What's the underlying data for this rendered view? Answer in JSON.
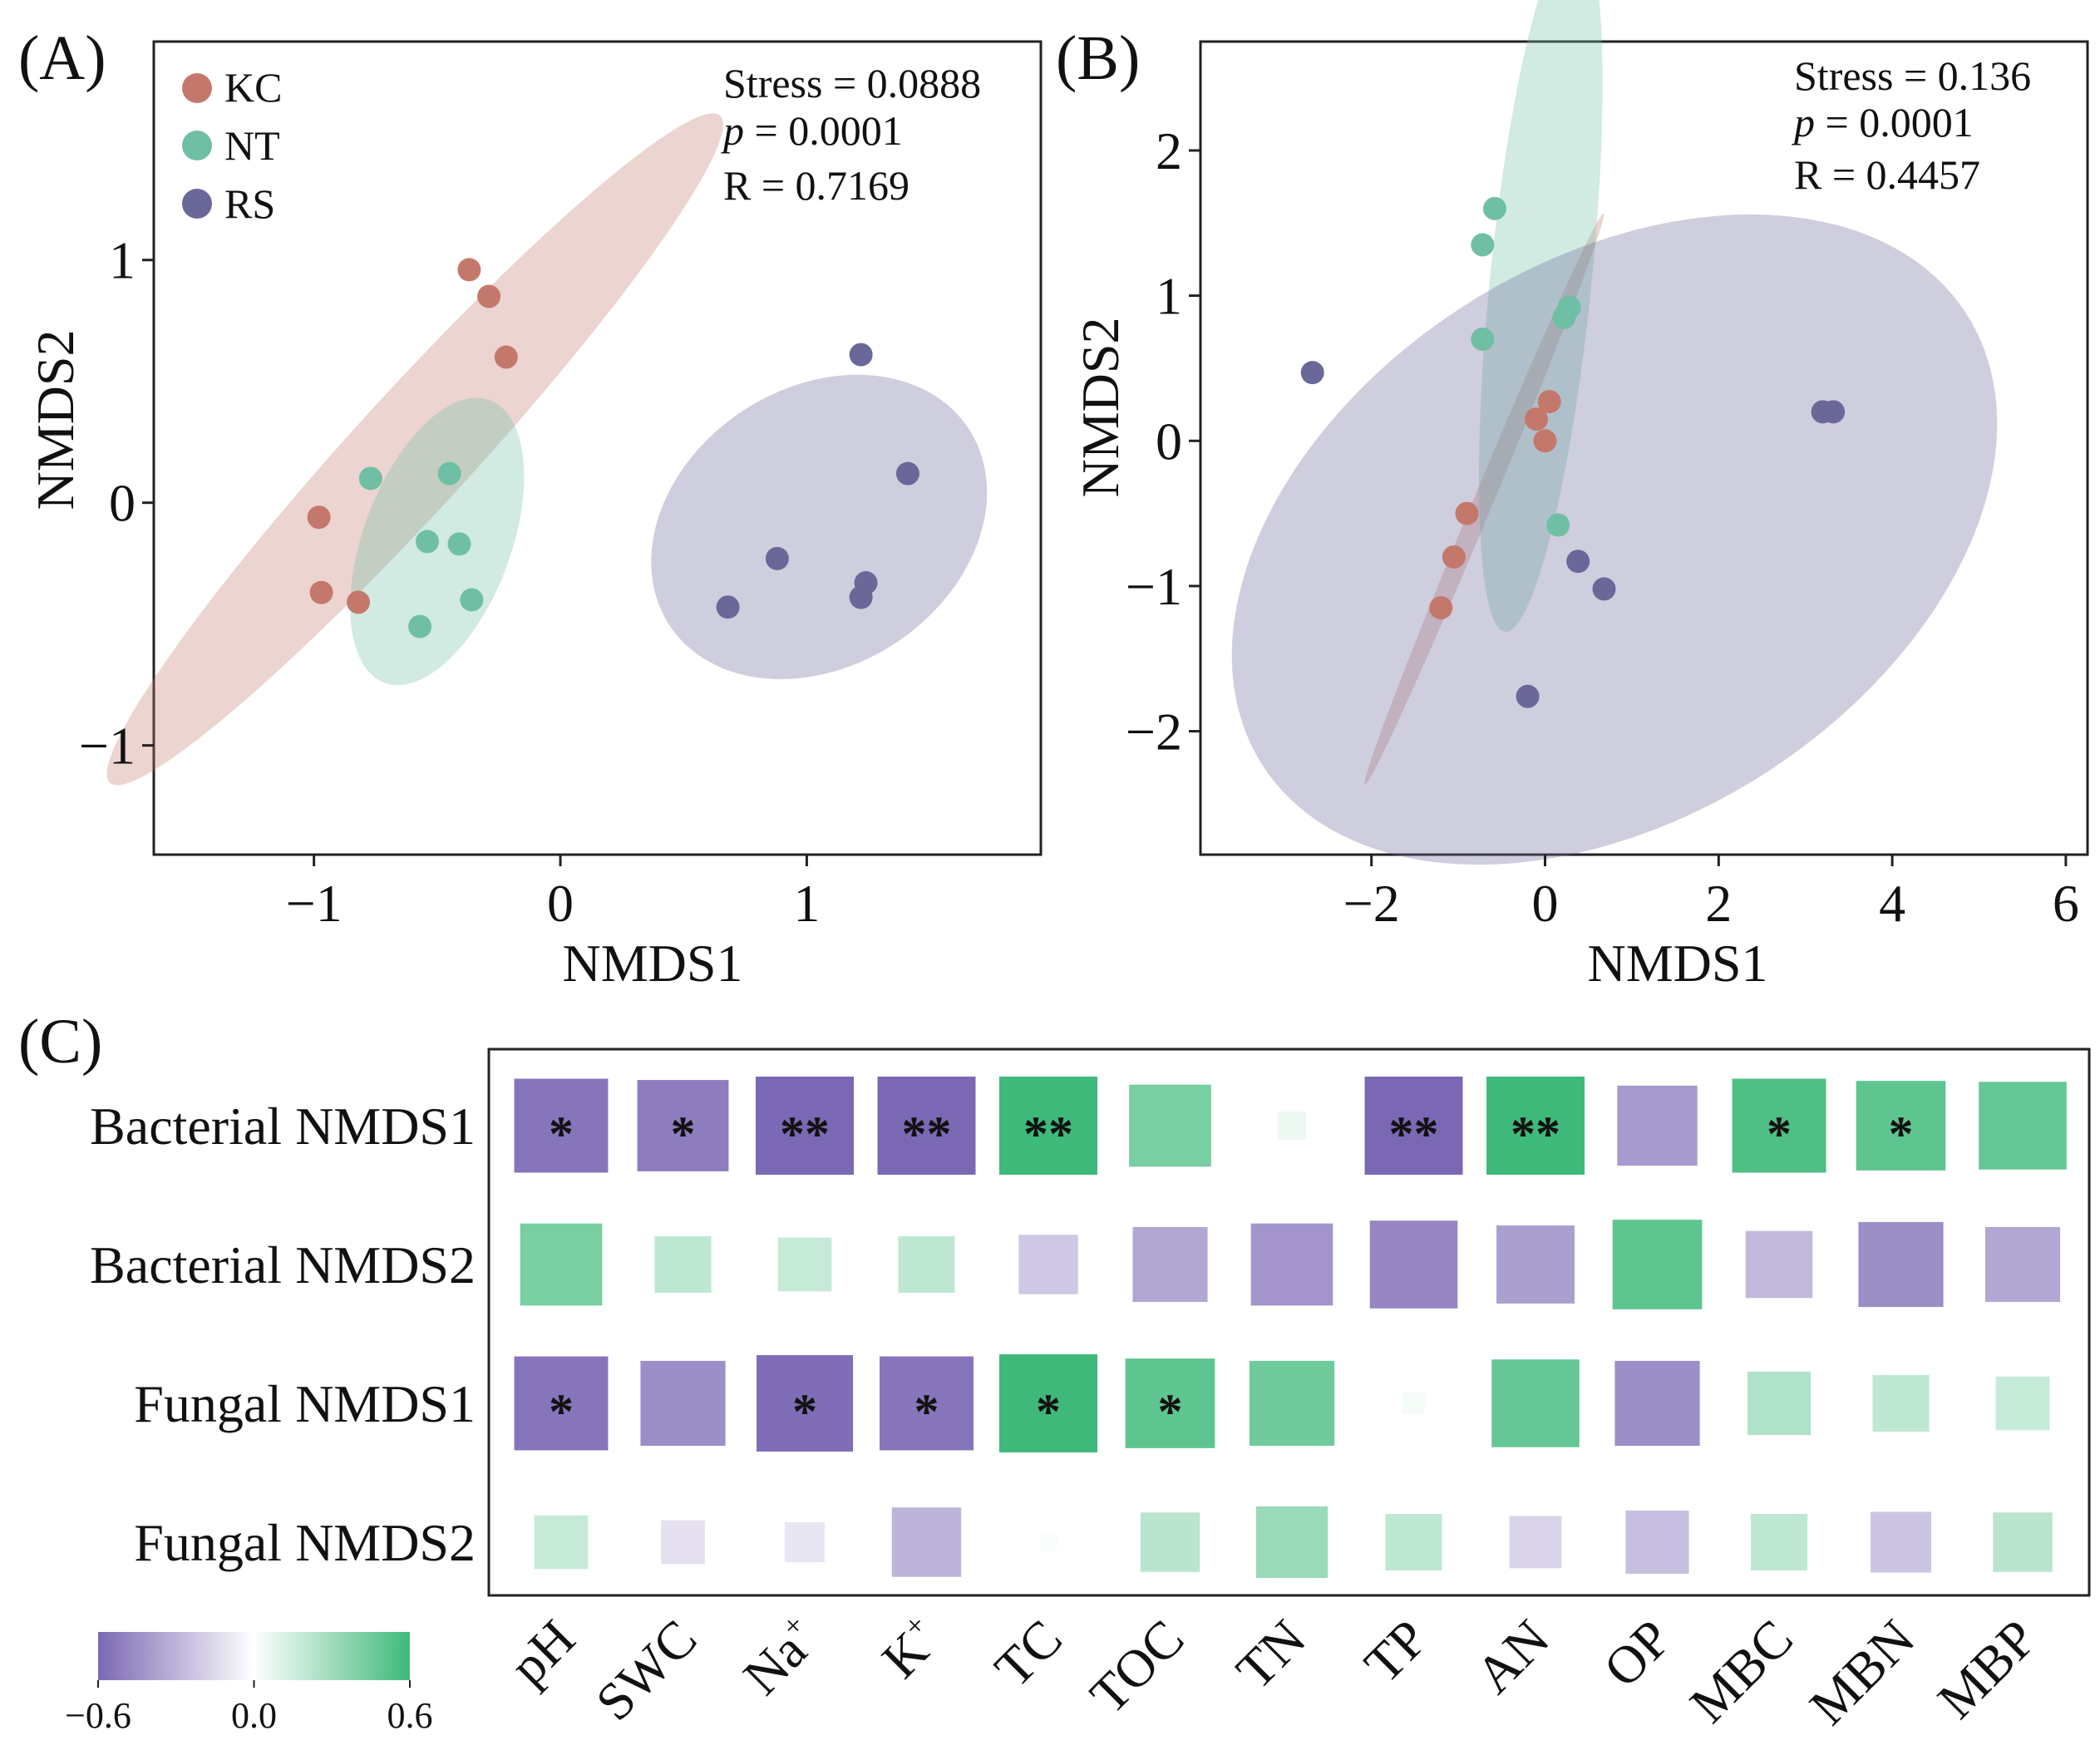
{
  "colors": {
    "KC": "#c4786c",
    "NT": "#6fbfa5",
    "RS": "#6a6799",
    "neg": "#7b68b4",
    "pos": "#3fb97a",
    "mid": "#ffffff"
  },
  "chart_data": [
    {
      "panel": "(A)",
      "type": "scatter",
      "xlabel": "NMDS1",
      "ylabel": "NMDS2",
      "xlim": [
        -1.65,
        1.95
      ],
      "ylim": [
        -1.45,
        1.9
      ],
      "xticks": [
        -1,
        0,
        1
      ],
      "xtick_labels": [
        "−1",
        "0",
        "1"
      ],
      "yticks": [
        -1,
        0,
        1
      ],
      "ytick_labels": [
        "−1",
        "0",
        "1"
      ],
      "stats": [
        "Stress = 0.0888",
        "p = 0.0001",
        "R = 0.7169"
      ],
      "legend": [
        "KC",
        "NT",
        "RS"
      ],
      "series": [
        {
          "name": "KC",
          "points": [
            [
              -0.37,
              0.96
            ],
            [
              -0.29,
              0.85
            ],
            [
              -0.22,
              0.6
            ],
            [
              -0.98,
              -0.06
            ],
            [
              -0.97,
              -0.37
            ],
            [
              -0.82,
              -0.41
            ]
          ]
        },
        {
          "name": "NT",
          "points": [
            [
              -0.77,
              0.1
            ],
            [
              -0.45,
              0.12
            ],
            [
              -0.54,
              -0.16
            ],
            [
              -0.41,
              -0.17
            ],
            [
              -0.36,
              -0.4
            ],
            [
              -0.57,
              -0.51
            ]
          ]
        },
        {
          "name": "RS",
          "points": [
            [
              1.22,
              0.61
            ],
            [
              1.41,
              0.12
            ],
            [
              0.88,
              -0.23
            ],
            [
              1.24,
              -0.33
            ],
            [
              1.22,
              -0.39
            ],
            [
              0.68,
              -0.43
            ]
          ]
        }
      ],
      "ellipses": [
        {
          "name": "KC",
          "cx": -0.59,
          "cy": 0.22,
          "rx": 1.85,
          "ry": 0.24,
          "angle_deg": 48
        },
        {
          "name": "NT",
          "cx": -0.5,
          "cy": -0.16,
          "rx": 0.62,
          "ry": 0.3,
          "angle_deg": 70
        },
        {
          "name": "RS",
          "cx": 1.05,
          "cy": -0.1,
          "rx": 0.73,
          "ry": 0.57,
          "angle_deg": 35
        }
      ]
    },
    {
      "panel": "(B)",
      "type": "scatter",
      "xlabel": "NMDS1",
      "ylabel": "NMDS2",
      "xlim": [
        -3.97,
        6.25
      ],
      "ylim": [
        -2.85,
        2.75
      ],
      "xticks": [
        -2,
        0,
        2,
        4,
        6
      ],
      "xtick_labels": [
        "−2",
        "0",
        "2",
        "4",
        "6"
      ],
      "yticks": [
        -2,
        -1,
        0,
        1,
        2
      ],
      "ytick_labels": [
        "−2",
        "−1",
        "0",
        "1",
        "2"
      ],
      "stats": [
        "Stress = 0.136",
        "p = 0.0001",
        "R = 0.4457"
      ],
      "series": [
        {
          "name": "KC",
          "points": [
            [
              0.05,
              0.27
            ],
            [
              -0.1,
              0.15
            ],
            [
              0.0,
              0.0
            ],
            [
              -0.9,
              -0.5
            ],
            [
              -1.05,
              -0.8
            ],
            [
              -1.2,
              -1.15
            ]
          ]
        },
        {
          "name": "NT",
          "points": [
            [
              -0.58,
              1.6
            ],
            [
              -0.72,
              1.35
            ],
            [
              0.28,
              0.92
            ],
            [
              0.22,
              0.85
            ],
            [
              -0.72,
              0.7
            ],
            [
              0.15,
              -0.58
            ]
          ]
        },
        {
          "name": "RS",
          "points": [
            [
              -2.68,
              0.47
            ],
            [
              3.2,
              0.2
            ],
            [
              3.32,
              0.2
            ],
            [
              0.38,
              -0.83
            ],
            [
              0.68,
              -1.02
            ],
            [
              -0.2,
              -1.76
            ]
          ]
        }
      ],
      "ellipses": [
        {
          "name": "KC",
          "cx": -0.7,
          "cy": -0.4,
          "rx": 2.4,
          "ry": 0.1,
          "angle_deg": 55
        },
        {
          "name": "NT",
          "cx": -0.05,
          "cy": 1.1,
          "rx": 2.45,
          "ry": 0.58,
          "angle_deg": 80
        },
        {
          "name": "RS",
          "cx": 0.8,
          "cy": -0.68,
          "rx": 4.5,
          "ry": 2.05,
          "angle_deg": 13
        }
      ]
    },
    {
      "panel": "(C)",
      "type": "heatmap",
      "rows": [
        "Bacterial NMDS1",
        "Bacterial NMDS2",
        "Fungal NMDS1",
        "Fungal NMDS2"
      ],
      "columns": [
        "pH",
        "SWC",
        "Na+",
        "K+",
        "TC",
        "TOC",
        "TN",
        "TP",
        "AN",
        "OP",
        "MBC",
        "MBN",
        "MBP"
      ],
      "column_labels": [
        {
          "base": "pH",
          "sup": ""
        },
        {
          "base": "SWC",
          "sup": ""
        },
        {
          "base": "Na",
          "sup": "+"
        },
        {
          "base": "K",
          "sup": "+"
        },
        {
          "base": "TC",
          "sup": ""
        },
        {
          "base": "TOC",
          "sup": ""
        },
        {
          "base": "TN",
          "sup": ""
        },
        {
          "base": "TP",
          "sup": ""
        },
        {
          "base": "AN",
          "sup": ""
        },
        {
          "base": "OP",
          "sup": ""
        },
        {
          "base": "MBC",
          "sup": ""
        },
        {
          "base": "MBN",
          "sup": ""
        },
        {
          "base": "MBP",
          "sup": ""
        }
      ],
      "values": [
        [
          -0.55,
          -0.52,
          -0.6,
          -0.6,
          0.62,
          0.42,
          0.05,
          -0.6,
          0.62,
          -0.4,
          0.55,
          0.5,
          0.48
        ],
        [
          0.42,
          0.2,
          0.18,
          0.2,
          -0.22,
          -0.35,
          -0.42,
          -0.48,
          -0.38,
          0.5,
          -0.28,
          -0.45,
          -0.35
        ],
        [
          -0.55,
          -0.45,
          -0.58,
          -0.55,
          0.6,
          0.5,
          0.45,
          0.03,
          0.48,
          -0.45,
          0.25,
          0.2,
          0.18
        ],
        [
          0.18,
          -0.12,
          -0.1,
          -0.3,
          0.02,
          0.22,
          0.32,
          0.2,
          -0.17,
          -0.25,
          0.2,
          -0.23,
          0.22
        ]
      ],
      "significance": [
        [
          "*",
          "*",
          "**",
          "**",
          "**",
          "",
          "",
          "**",
          "**",
          "",
          "*",
          "*",
          ""
        ],
        [
          "",
          "",
          "",
          "",
          "",
          "",
          "",
          "",
          "",
          "",
          "",
          "",
          ""
        ],
        [
          "*",
          "",
          "*",
          "*",
          "*",
          "*",
          "",
          "",
          "",
          "",
          "",
          "",
          ""
        ],
        [
          "",
          "",
          "",
          "",
          "",
          "",
          "",
          "",
          "",
          "",
          "",
          "",
          ""
        ]
      ],
      "colorbar": {
        "min": -0.6,
        "max": 0.6,
        "tick_labels": [
          "−0.6",
          "0.0",
          "0.6"
        ]
      }
    }
  ]
}
